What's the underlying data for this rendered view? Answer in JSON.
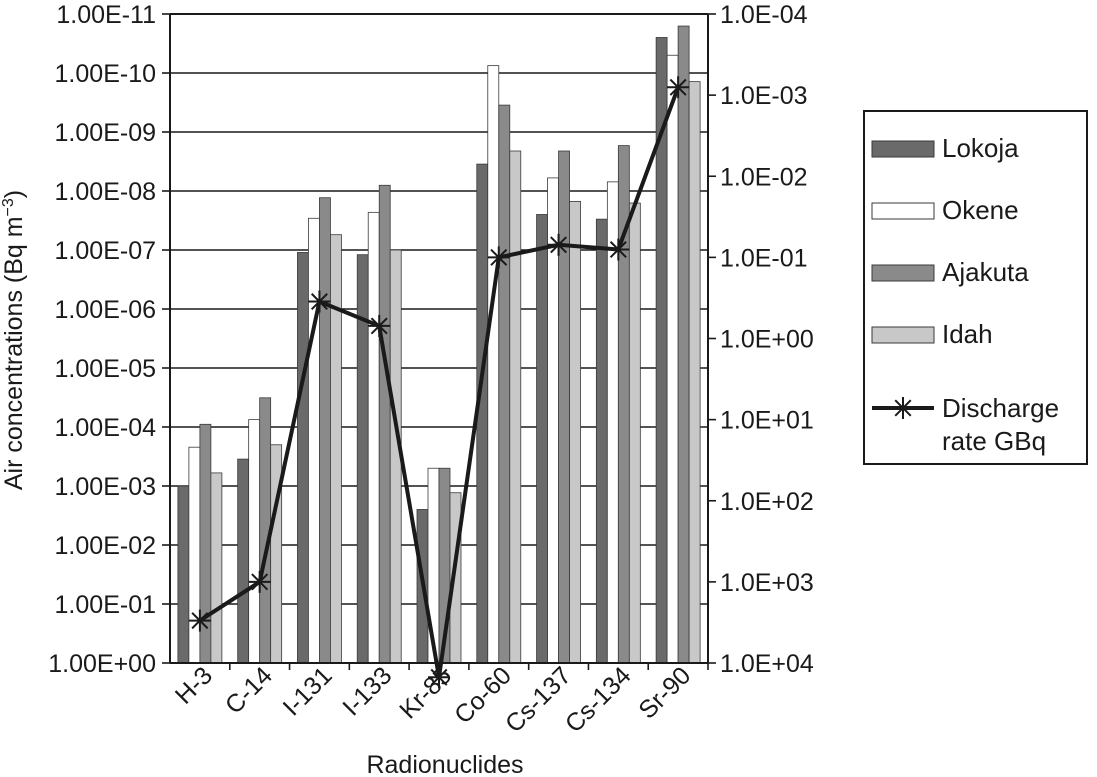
{
  "chart_data": {
    "type": "bar",
    "categories": [
      "H-3",
      "C-14",
      "I-131",
      "I-133",
      "Kr-85",
      "Co-60",
      "Cs-137",
      "Cs-134",
      "Sr-90"
    ],
    "xlabel": "Radionuclides",
    "ylabel": "Air concentrations (Bq m",
    "ylabel_superscript": "−3",
    "left_axis": {
      "scale": "log",
      "reversed": true,
      "ylim": [
        1,
        1e-11
      ],
      "tick_labels": [
        "1.00E-11",
        "1.00E-10",
        "1.00E-09",
        "1.00E-08",
        "1.00E-07",
        "1.00E-06",
        "1.00E-05",
        "1.00E-04",
        "1.00E-03",
        "1.00E-02",
        "1.00E-01",
        "1.00E+00"
      ]
    },
    "right_axis": {
      "scale": "log",
      "reversed": true,
      "ylim": [
        10000,
        0.0001
      ],
      "tick_labels": [
        "1.0E-04",
        "1.0E-03",
        "1.0E-02",
        "1.0E-01",
        "1.0E+00",
        "1.0E+01",
        "1.0E+02",
        "1.0E+03",
        "1.0E+04"
      ]
    },
    "grid": true,
    "legend_position": "right",
    "series": [
      {
        "name": "Lokoja",
        "axis": "left",
        "color": "#6a6a6a",
        "values": [
          0.001,
          0.00035,
          1.1e-07,
          1.2e-07,
          0.0025,
          3.5e-09,
          2.5e-08,
          3e-08,
          2.5e-11
        ]
      },
      {
        "name": "Okene",
        "axis": "left",
        "color": "#ffffff",
        "values": [
          0.00022,
          7.5e-05,
          2.9e-08,
          2.3e-08,
          0.0005,
          7.5e-11,
          6e-09,
          7e-09,
          5e-11
        ]
      },
      {
        "name": "Ajakuta",
        "axis": "left",
        "color": "#8a8a8a",
        "values": [
          9e-05,
          3.2e-05,
          1.3e-08,
          8e-09,
          0.0005,
          3.5e-10,
          2.1e-09,
          1.7e-09,
          1.6e-11
        ]
      },
      {
        "name": "Idah",
        "axis": "left",
        "color": "#c8c8c8",
        "values": [
          0.0006,
          0.0002,
          5.5e-08,
          1e-07,
          0.0013,
          2.1e-09,
          1.5e-08,
          1.6e-08,
          1.4e-10
        ]
      },
      {
        "name": "Discharge rate GBq",
        "axis": "right",
        "type": "line",
        "marker": "asterisk",
        "color": "#1a1a1a",
        "values": [
          3000,
          1000,
          0.35,
          0.7,
          15000,
          0.1,
          0.07,
          0.08,
          0.0008
        ]
      }
    ]
  }
}
